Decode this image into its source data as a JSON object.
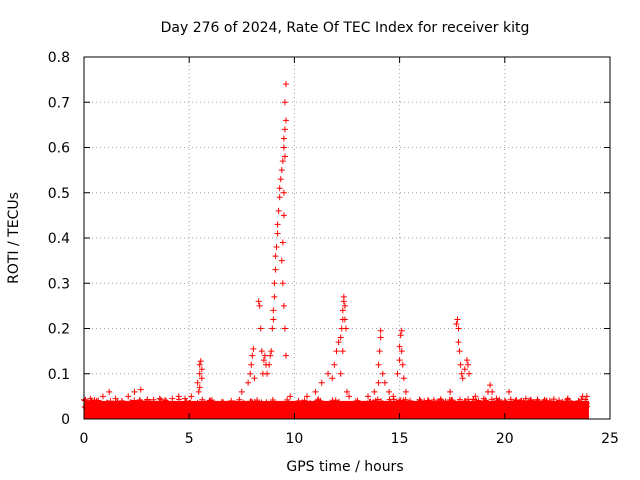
{
  "chart_data": {
    "type": "scatter",
    "title": "Day 276 of 2024, Rate Of TEC Index for receiver kitg",
    "xlabel": "GPS time / hours",
    "ylabel": "ROTI / TECUs",
    "xlim": [
      0,
      25
    ],
    "ylim": [
      0,
      0.8
    ],
    "x_ticks": [
      "0",
      "5",
      "10",
      "15",
      "20",
      "25"
    ],
    "y_ticks": [
      "0",
      "0.1",
      "0.2",
      "0.3",
      "0.4",
      "0.5",
      "0.6",
      "0.7",
      "0.8"
    ],
    "grid": true,
    "marker": "+",
    "color": "#ff0000",
    "baseline": {
      "x_range": [
        0,
        24
      ],
      "y_range": [
        0.0,
        0.04
      ]
    },
    "x": [
      0.1,
      0.3,
      0.6,
      0.9,
      1.2,
      1.5,
      1.8,
      2.1,
      2.4,
      2.7,
      3.0,
      3.3,
      3.6,
      3.9,
      4.2,
      4.5,
      4.8,
      5.1,
      5.4,
      5.5,
      5.5,
      5.55,
      5.6,
      5.6,
      5.5,
      5.45,
      6.0,
      6.5,
      7.0,
      7.5,
      7.8,
      7.9,
      7.95,
      8.0,
      8.05,
      8.1,
      8.3,
      8.35,
      8.4,
      8.45,
      8.5,
      8.55,
      8.6,
      8.65,
      8.7,
      8.8,
      8.85,
      8.9,
      8.95,
      9.0,
      9.0,
      9.05,
      9.05,
      9.1,
      9.1,
      9.15,
      9.2,
      9.2,
      9.25,
      9.3,
      9.3,
      9.35,
      9.4,
      9.45,
      9.5,
      9.5,
      9.55,
      9.55,
      9.6,
      9.6,
      9.55,
      9.5,
      9.5,
      9.45,
      9.4,
      9.45,
      9.5,
      9.55,
      9.6,
      9.8,
      10.2,
      10.6,
      11.0,
      11.3,
      11.6,
      11.8,
      11.9,
      12.0,
      12.1,
      12.2,
      12.25,
      12.3,
      12.3,
      12.35,
      12.35,
      12.4,
      12.4,
      12.45,
      12.3,
      12.2,
      12.5,
      12.6,
      13.0,
      13.5,
      13.8,
      14.0,
      14.0,
      14.05,
      14.1,
      14.1,
      14.2,
      14.3,
      14.5,
      14.7,
      14.9,
      15.0,
      15.0,
      15.05,
      15.1,
      15.1,
      15.15,
      15.2,
      15.3,
      15.5,
      16.0,
      16.5,
      17.0,
      17.4,
      17.7,
      17.75,
      17.8,
      17.8,
      17.85,
      17.9,
      17.95,
      18.0,
      18.1,
      18.2,
      18.25,
      18.3,
      18.6,
      19.0,
      19.2,
      19.3,
      19.4,
      19.6,
      20.0,
      20.2,
      20.5,
      21.0,
      21.5,
      22.0,
      22.5,
      23.0,
      23.5,
      23.7,
      23.9
    ],
    "y": [
      0.03,
      0.045,
      0.04,
      0.05,
      0.06,
      0.045,
      0.04,
      0.05,
      0.06,
      0.065,
      0.04,
      0.035,
      0.045,
      0.04,
      0.045,
      0.05,
      0.045,
      0.05,
      0.08,
      0.1,
      0.12,
      0.128,
      0.11,
      0.09,
      0.07,
      0.06,
      0.04,
      0.03,
      0.04,
      0.06,
      0.08,
      0.1,
      0.12,
      0.14,
      0.155,
      0.09,
      0.26,
      0.25,
      0.2,
      0.15,
      0.1,
      0.13,
      0.14,
      0.12,
      0.1,
      0.12,
      0.14,
      0.15,
      0.2,
      0.22,
      0.24,
      0.27,
      0.3,
      0.33,
      0.36,
      0.38,
      0.41,
      0.43,
      0.46,
      0.49,
      0.51,
      0.53,
      0.55,
      0.57,
      0.6,
      0.62,
      0.64,
      0.7,
      0.74,
      0.66,
      0.58,
      0.5,
      0.45,
      0.39,
      0.35,
      0.3,
      0.25,
      0.2,
      0.14,
      0.05,
      0.04,
      0.05,
      0.06,
      0.08,
      0.1,
      0.09,
      0.12,
      0.15,
      0.17,
      0.18,
      0.2,
      0.22,
      0.24,
      0.26,
      0.27,
      0.25,
      0.22,
      0.2,
      0.15,
      0.1,
      0.06,
      0.05,
      0.04,
      0.05,
      0.06,
      0.08,
      0.12,
      0.15,
      0.18,
      0.195,
      0.1,
      0.08,
      0.06,
      0.05,
      0.1,
      0.13,
      0.16,
      0.185,
      0.195,
      0.15,
      0.12,
      0.09,
      0.06,
      0.04,
      0.04,
      0.035,
      0.04,
      0.06,
      0.21,
      0.22,
      0.2,
      0.17,
      0.15,
      0.12,
      0.1,
      0.09,
      0.11,
      0.13,
      0.12,
      0.1,
      0.05,
      0.045,
      0.06,
      0.075,
      0.06,
      0.045,
      0.04,
      0.06,
      0.04,
      0.045,
      0.035,
      0.04,
      0.035,
      0.045,
      0.04,
      0.05,
      0.05
    ]
  }
}
